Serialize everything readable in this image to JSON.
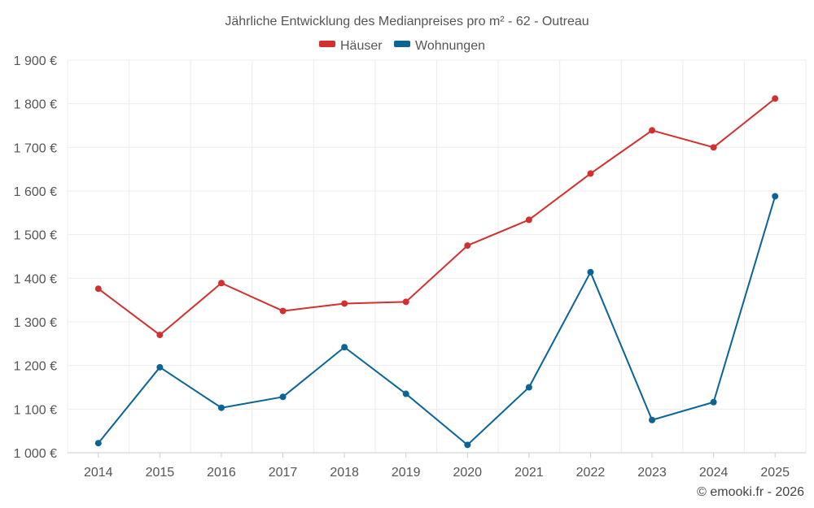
{
  "chart_data": {
    "type": "line",
    "title": "Jährliche Entwicklung des Medianpreises pro m² - 62 - Outreau",
    "categories": [
      "2014",
      "2015",
      "2016",
      "2017",
      "2018",
      "2019",
      "2020",
      "2021",
      "2022",
      "2023",
      "2024",
      "2025"
    ],
    "series": [
      {
        "name": "Häuser",
        "color": "#d32f2f",
        "values": [
          1376,
          1270,
          1389,
          1325,
          1342,
          1346,
          1475,
          1534,
          1640,
          1739,
          1700,
          1812
        ]
      },
      {
        "name": "Wohnungen",
        "color": "#0a6496",
        "values": [
          1022,
          1196,
          1103,
          1128,
          1242,
          1135,
          1018,
          1150,
          1414,
          1075,
          1116,
          1588
        ]
      }
    ],
    "ylim": [
      1000,
      1900
    ],
    "yticks": [
      1000,
      1100,
      1200,
      1300,
      1400,
      1500,
      1600,
      1700,
      1800,
      1900
    ],
    "ytick_labels": [
      "1 000 €",
      "1 100 €",
      "1 200 €",
      "1 300 €",
      "1 400 €",
      "1 500 €",
      "1 600 €",
      "1 700 €",
      "1 800 €",
      "1 900 €"
    ],
    "xlabel": "",
    "ylabel": "",
    "grid": true,
    "legend_position": "top-center"
  },
  "credit": "© emooki.fr - 2026"
}
